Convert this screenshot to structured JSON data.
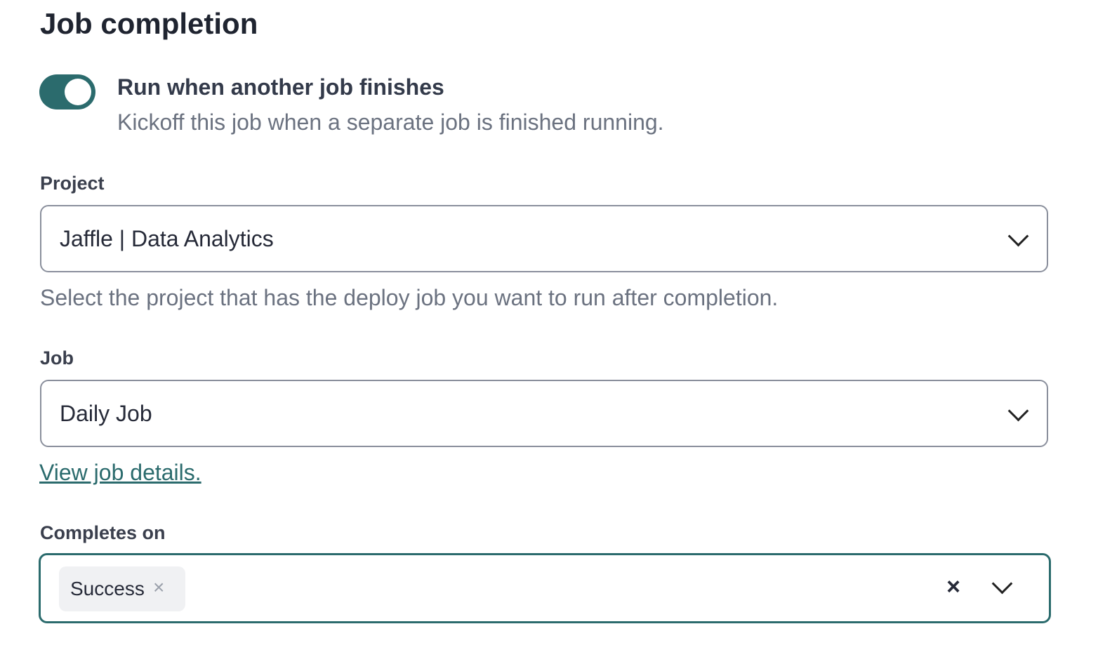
{
  "section": {
    "title": "Job completion"
  },
  "toggle": {
    "label": "Run when another job finishes",
    "description": "Kickoff this job when a separate job is finished running.",
    "enabled": true,
    "color": "#2b6b6d"
  },
  "project": {
    "label": "Project",
    "value": "Jaffle | Data Analytics",
    "help": "Select the project that has the deploy job you want to run after completion."
  },
  "job": {
    "label": "Job",
    "value": "Daily Job",
    "link": "View job details."
  },
  "completes_on": {
    "label": "Completes on",
    "tags": [
      {
        "label": "Success",
        "remove": "×"
      }
    ],
    "clear": "×"
  }
}
